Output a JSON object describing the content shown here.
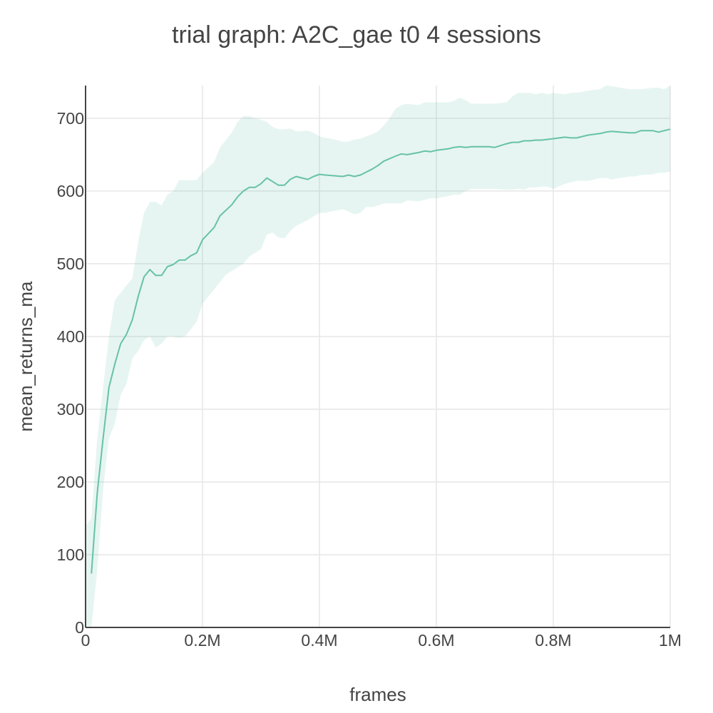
{
  "chart_data": {
    "type": "line",
    "title": "trial graph: A2C_gae t0 4 sessions",
    "xlabel": "frames",
    "ylabel": "mean_returns_ma",
    "xlim": [
      0,
      1000000
    ],
    "ylim": [
      0,
      745
    ],
    "x_ticks": [
      {
        "value": 0,
        "label": "0"
      },
      {
        "value": 200000,
        "label": "0.2M"
      },
      {
        "value": 400000,
        "label": "0.4M"
      },
      {
        "value": 600000,
        "label": "0.6M"
      },
      {
        "value": 800000,
        "label": "0.8M"
      },
      {
        "value": 1000000,
        "label": "1M"
      }
    ],
    "y_ticks": [
      {
        "value": 0,
        "label": "0"
      },
      {
        "value": 100,
        "label": "100"
      },
      {
        "value": 200,
        "label": "200"
      },
      {
        "value": 300,
        "label": "300"
      },
      {
        "value": 400,
        "label": "400"
      },
      {
        "value": 500,
        "label": "500"
      },
      {
        "value": 600,
        "label": "600"
      },
      {
        "value": 700,
        "label": "700"
      }
    ],
    "grid": true,
    "legend": "none",
    "colors": {
      "line": "#66c2a5",
      "band": "#66c2a5",
      "band_opacity": 0.16
    },
    "series": [
      {
        "x": [
          10000,
          20000,
          30000,
          40000,
          50000,
          60000,
          70000,
          80000,
          90000,
          100000,
          110000,
          120000,
          130000,
          140000,
          150000,
          160000,
          170000,
          180000,
          190000,
          200000,
          220000,
          230000,
          250000,
          260000,
          270000,
          280000,
          290000,
          300000,
          310000,
          320000,
          330000,
          340000,
          350000,
          360000,
          380000,
          390000,
          400000,
          410000,
          440000,
          450000,
          460000,
          470000,
          480000,
          490000,
          500000,
          510000,
          530000,
          540000,
          550000,
          570000,
          580000,
          590000,
          600000,
          620000,
          630000,
          640000,
          650000,
          660000,
          690000,
          700000,
          720000,
          730000,
          740000,
          750000,
          760000,
          770000,
          780000,
          790000,
          800000,
          820000,
          830000,
          840000,
          860000,
          880000,
          890000,
          900000,
          930000,
          940000,
          950000,
          970000,
          980000,
          990000,
          1000000
        ],
        "y": [
          74,
          185,
          260,
          330,
          362,
          390,
          403,
          423,
          455,
          482,
          492,
          484,
          484,
          496,
          499,
          505,
          505,
          511,
          515,
          533,
          550,
          566,
          581,
          592,
          600,
          605,
          605,
          610,
          618,
          613,
          608,
          608,
          616,
          620,
          616,
          620,
          623,
          622,
          620,
          622,
          620,
          622,
          626,
          630,
          635,
          641,
          648,
          651,
          650,
          653,
          655,
          654,
          656,
          658,
          660,
          661,
          660,
          661,
          661,
          660,
          665,
          667,
          667,
          669,
          669,
          670,
          670,
          671,
          672,
          674,
          673,
          673,
          677,
          679,
          681,
          682,
          680,
          680,
          683,
          683,
          681,
          683,
          685
        ]
      }
    ],
    "band": {
      "x": [
        0,
        10000,
        20000,
        30000,
        40000,
        50000,
        60000,
        70000,
        80000,
        90000,
        100000,
        110000,
        120000,
        130000,
        140000,
        150000,
        160000,
        170000,
        180000,
        190000,
        200000,
        220000,
        230000,
        240000,
        250000,
        260000,
        270000,
        280000,
        290000,
        300000,
        310000,
        320000,
        330000,
        340000,
        350000,
        360000,
        380000,
        390000,
        400000,
        410000,
        420000,
        440000,
        450000,
        460000,
        470000,
        480000,
        490000,
        500000,
        510000,
        520000,
        530000,
        540000,
        550000,
        570000,
        580000,
        590000,
        600000,
        620000,
        630000,
        640000,
        650000,
        660000,
        690000,
        700000,
        720000,
        730000,
        740000,
        750000,
        760000,
        770000,
        780000,
        790000,
        800000,
        820000,
        830000,
        840000,
        860000,
        880000,
        890000,
        900000,
        930000,
        940000,
        950000,
        970000,
        980000,
        990000,
        1000000
      ],
      "upper": [
        140,
        150,
        260,
        330,
        400,
        450,
        460,
        470,
        480,
        530,
        570,
        585,
        585,
        580,
        595,
        600,
        615,
        615,
        615,
        615,
        625,
        640,
        660,
        670,
        680,
        695,
        703,
        703,
        700,
        698,
        695,
        688,
        685,
        685,
        686,
        682,
        683,
        680,
        675,
        673,
        672,
        668,
        668,
        671,
        672,
        675,
        678,
        682,
        690,
        700,
        713,
        718,
        720,
        718,
        722,
        722,
        722,
        722,
        724,
        728,
        725,
        720,
        720,
        720,
        722,
        730,
        735,
        735,
        735,
        733,
        735,
        733,
        735,
        733,
        735,
        735,
        738,
        740,
        745,
        744,
        740,
        740,
        740,
        742,
        742,
        740,
        745
      ],
      "lower": [
        0,
        0,
        80,
        190,
        260,
        280,
        320,
        335,
        370,
        380,
        395,
        400,
        385,
        390,
        400,
        400,
        398,
        400,
        410,
        420,
        445,
        465,
        475,
        485,
        490,
        495,
        500,
        510,
        515,
        520,
        540,
        543,
        536,
        535,
        545,
        552,
        560,
        565,
        570,
        570,
        572,
        575,
        572,
        568,
        570,
        578,
        578,
        580,
        583,
        583,
        583,
        583,
        587,
        586,
        588,
        590,
        590,
        593,
        595,
        595,
        600,
        603,
        603,
        603,
        602,
        602,
        603,
        602,
        605,
        605,
        606,
        606,
        603,
        610,
        612,
        614,
        614,
        618,
        618,
        616,
        620,
        620,
        622,
        623,
        625,
        625,
        627
      ]
    }
  }
}
